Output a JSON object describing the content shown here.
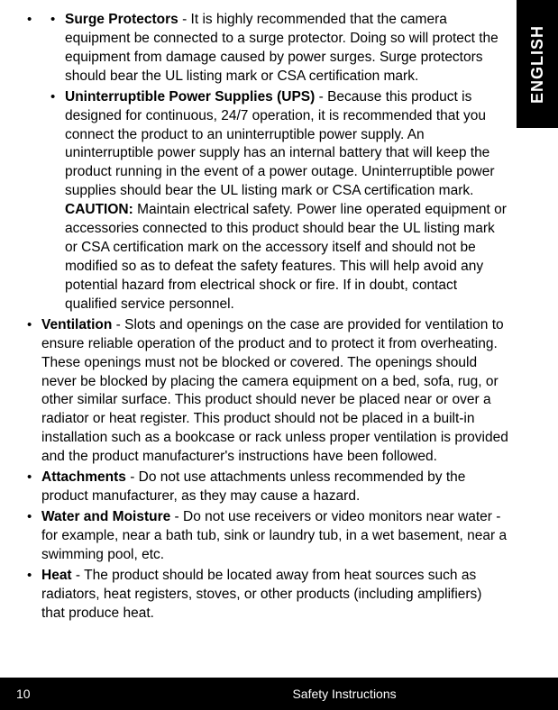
{
  "langTab": "ENGLISH",
  "items": [
    {
      "nested": true,
      "sub": [
        {
          "title": "Surge Protectors",
          "body": " - It is highly recommended that the camera equipment be connected to a surge protector. Doing so will protect the equipment from damage caused by power surges. Surge protectors should bear the UL listing mark or CSA certification mark."
        },
        {
          "title": "Uninterruptible Power Supplies (UPS)",
          "body": " - Because this product is designed for continuous, 24/7 operation, it is recommended that you connect the product to an uninterruptible power supply. An uninterruptible power supply has an internal battery that will keep the product running in the event of a power outage. Uninterruptible power supplies should bear the UL listing mark or CSA certification mark.",
          "caution_label": "CAUTION:",
          "caution_body": " Maintain electrical safety. Power line operated equipment or accessories connected to this product should bear the UL listing mark or CSA certification mark on the accessory itself and should not be modified so as to defeat the safety features. This will help avoid any potential hazard from electrical shock or fire. If in doubt, contact qualified service personnel."
        }
      ]
    },
    {
      "title": "Ventilation",
      "body": " - Slots and openings on the case are provided for ventilation to ensure reliable operation of the product and to protect it from overheating. These openings must not be blocked or covered. The openings should never be blocked by placing the camera equipment on a bed, sofa, rug, or other similar surface. This product should never be placed near or over a radiator or heat register. This product should not be placed in a built-in installation such as a bookcase or rack unless proper ventilation is provided and the product manufacturer's instructions have been followed."
    },
    {
      "title": "Attachments",
      "body": " - Do not use attachments unless recommended by the product manufacturer, as they may cause a hazard."
    },
    {
      "title": "Water and Moisture",
      "body": " - Do not use receivers or video monitors near water - for example, near a bath tub, sink or laundry tub, in a wet basement, near a swimming pool, etc."
    },
    {
      "title": "Heat",
      "body": " - The product should be located away from heat sources such as radiators, heat registers, stoves, or other products (including amplifiers) that produce heat."
    }
  ],
  "footer": {
    "page": "10",
    "title": "Safety Instructions"
  },
  "colors": {
    "bg": "#ffffff",
    "text": "#000000",
    "footer_bg": "#000000",
    "footer_text": "#ffffff"
  }
}
